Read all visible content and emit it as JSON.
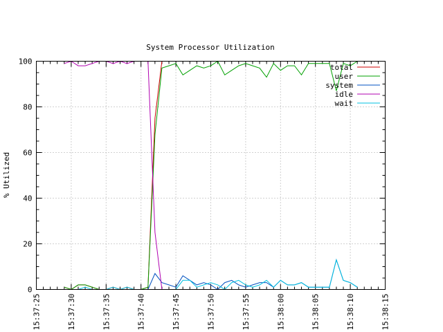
{
  "chart_data": {
    "type": "line",
    "title": "System Processor Utilization",
    "ylabel": "% Utilized",
    "xlabel": "",
    "ylim": [
      0,
      100
    ],
    "yticks": [
      0,
      20,
      40,
      60,
      80,
      100
    ],
    "xlim": [
      "15:37:25",
      "15:38:15"
    ],
    "xticks": [
      "15:37:25",
      "15:37:30",
      "15:37:35",
      "15:37:40",
      "15:37:45",
      "15:37:50",
      "15:37:55",
      "15:38:00",
      "15:38:05",
      "15:38:10",
      "15:38:15"
    ],
    "grid": true,
    "legend_position": "top-right",
    "x": [
      "15:37:29",
      "15:37:30",
      "15:37:31",
      "15:37:32",
      "15:37:33",
      "15:37:34",
      "15:37:35",
      "15:37:36",
      "15:37:37",
      "15:37:38",
      "15:37:39",
      "15:37:40",
      "15:37:41",
      "15:37:42",
      "15:37:43",
      "15:37:44",
      "15:37:45",
      "15:37:46",
      "15:37:47",
      "15:37:48",
      "15:37:49",
      "15:37:50",
      "15:37:51",
      "15:37:52",
      "15:37:53",
      "15:37:54",
      "15:37:55",
      "15:37:56",
      "15:37:57",
      "15:37:58",
      "15:37:59",
      "15:38:00",
      "15:38:01",
      "15:38:02",
      "15:38:03",
      "15:38:04",
      "15:38:05",
      "15:38:06",
      "15:38:07",
      "15:38:08",
      "15:38:09",
      "15:38:10",
      "15:38:11"
    ],
    "series": [
      {
        "name": "total",
        "color": "#cc0000",
        "values": [
          1,
          0,
          2,
          2,
          1,
          0,
          0,
          1,
          0,
          1,
          0,
          0,
          1,
          75,
          100,
          100,
          100,
          100,
          100,
          100,
          100,
          100,
          100,
          100,
          100,
          100,
          100,
          100,
          100,
          100,
          100,
          100,
          100,
          100,
          100,
          100,
          100,
          100,
          100,
          100,
          100,
          100,
          100
        ]
      },
      {
        "name": "user",
        "color": "#00a000",
        "values": [
          1,
          0,
          2,
          2,
          1,
          0,
          0,
          0,
          0,
          0,
          0,
          0,
          1,
          68,
          97,
          98,
          99,
          94,
          96,
          98,
          97,
          98,
          100,
          94,
          96,
          98,
          99,
          98,
          97,
          93,
          99,
          96,
          98,
          98,
          94,
          99,
          99,
          99,
          99,
          87,
          99,
          98,
          100
        ]
      },
      {
        "name": "system",
        "color": "#0050c0",
        "values": [
          0,
          0,
          0,
          0,
          0,
          0,
          0,
          0,
          0,
          0,
          0,
          0,
          0,
          7,
          3,
          2,
          1,
          6,
          4,
          2,
          3,
          2,
          0,
          3,
          4,
          2,
          1,
          2,
          3,
          3,
          1,
          4,
          2,
          2,
          3,
          1,
          1,
          1,
          1,
          13,
          4,
          3,
          1
        ]
      },
      {
        "name": "idle",
        "color": "#b000b0",
        "values": [
          99,
          100,
          98,
          98,
          99,
          100,
          100,
          99,
          100,
          99,
          100,
          100,
          100,
          25,
          0,
          0,
          0,
          0,
          0,
          0,
          0,
          0,
          0,
          0,
          0,
          0,
          0,
          0,
          0,
          0,
          0,
          0,
          0,
          0,
          0,
          0,
          0,
          0,
          0,
          0,
          0,
          0,
          0
        ]
      },
      {
        "name": "wait",
        "color": "#00c0e0",
        "values": [
          0,
          0,
          0,
          1,
          0,
          0,
          0,
          1,
          0,
          1,
          0,
          0,
          0,
          0,
          0,
          0,
          0,
          4,
          4,
          1,
          2,
          3,
          2,
          0,
          3,
          4,
          2,
          1,
          2,
          4,
          1,
          4,
          2,
          2,
          3,
          1,
          1,
          1,
          1,
          13,
          4,
          3,
          1
        ]
      }
    ]
  }
}
